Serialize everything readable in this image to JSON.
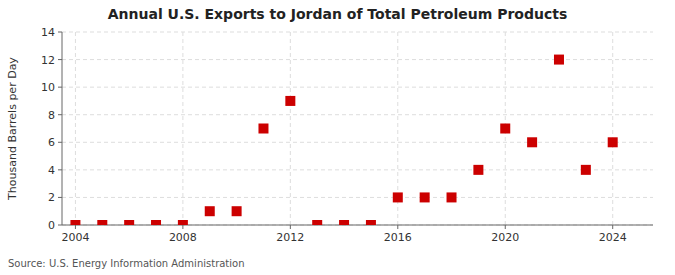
{
  "chart_data": {
    "type": "scatter",
    "title": "Annual U.S. Exports to Jordan of Total Petroleum Products",
    "y_label": "Thousand Barrels per Day",
    "source": "Source: U.S. Energy Information Administration",
    "x": [
      2004,
      2005,
      2006,
      2007,
      2008,
      2009,
      2010,
      2011,
      2012,
      2013,
      2014,
      2015,
      2016,
      2017,
      2018,
      2019,
      2020,
      2021,
      2022,
      2023,
      2024
    ],
    "values": [
      0.0,
      0.0,
      0.0,
      0.0,
      0.0,
      1.0,
      1.0,
      7.0,
      9.0,
      0.0,
      0.0,
      0.0,
      2.0,
      2.0,
      2.0,
      4.0,
      7.0,
      6.0,
      12.0,
      4.0,
      6.0
    ],
    "color": "#cc0000",
    "marker": "square",
    "xlim": [
      2003.5,
      2025.5
    ],
    "xticks": [
      2004,
      2008,
      2012,
      2016,
      2020,
      2024
    ],
    "ylim": [
      0,
      14
    ],
    "yticks": [
      0,
      2,
      4,
      6,
      8,
      10,
      12,
      14
    ],
    "grid": true
  }
}
